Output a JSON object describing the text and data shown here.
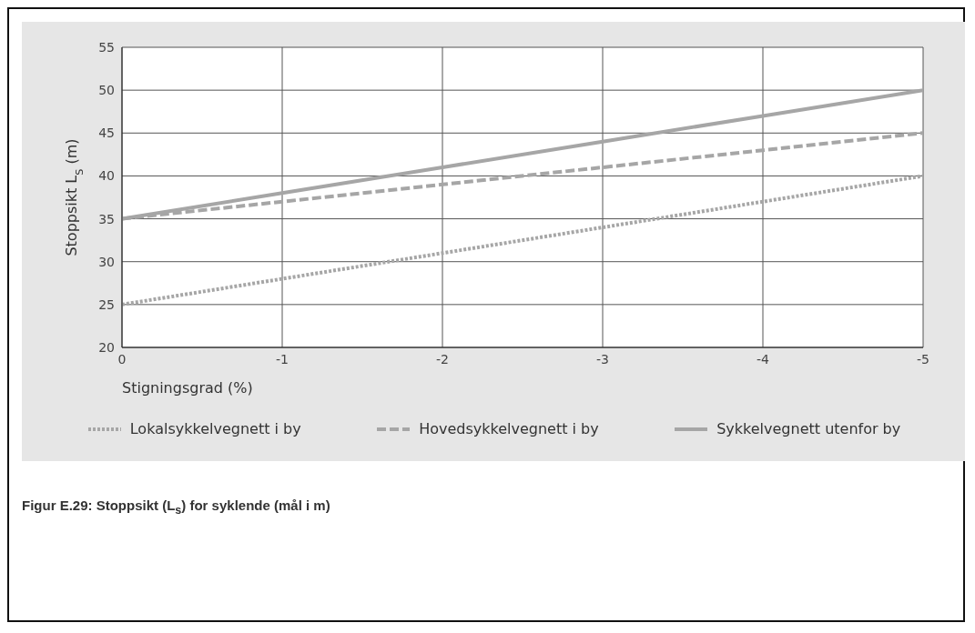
{
  "chart_data": {
    "type": "line",
    "xlabel": "Stigningsgrad (%)",
    "ylabel": "Stoppsikt L$_{S}$ (m)",
    "x": [
      0,
      -1,
      -2,
      -3,
      -4,
      -5
    ],
    "xlim": [
      0,
      -5
    ],
    "xticks": [
      0,
      -1,
      -2,
      -3,
      -4,
      -5
    ],
    "ylim": [
      20,
      55
    ],
    "yticks": [
      20,
      25,
      30,
      35,
      40,
      45,
      50,
      55
    ],
    "grid": true,
    "legend": "bottom",
    "marker": "none",
    "series": [
      {
        "name": "Lokalsykkelvegnett i by",
        "color": "#a6a6a6",
        "line_style": "dotted",
        "values": [
          25,
          28,
          31,
          34,
          37,
          40
        ]
      },
      {
        "name": "Hovedsykkelvegnett i by",
        "color": "#a6a6a6",
        "line_style": "dashed",
        "values": [
          35,
          37,
          39,
          41,
          43,
          45
        ]
      },
      {
        "name": "Sykkelvegnett utenfor by",
        "color": "#a6a6a6",
        "line_style": "solid",
        "values": [
          35,
          38,
          41,
          44,
          47,
          50
        ]
      }
    ],
    "annotations": [
      "Figur E.29: Stoppsikt (L$_{s}$) for syklende (mål i m)"
    ]
  }
}
